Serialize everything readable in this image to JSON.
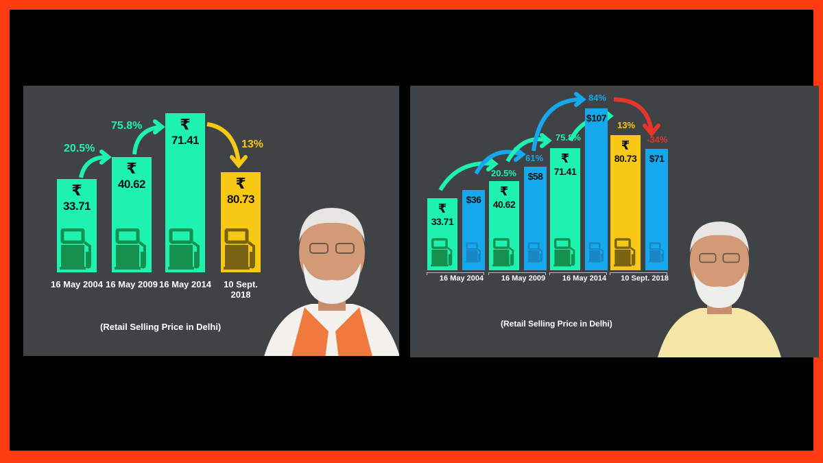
{
  "chart_data": [
    {
      "type": "bar",
      "categories": [
        "16 May 2004",
        "16 May 2009",
        "16 May 2014",
        "10 Sept. 2018"
      ],
      "series": [
        {
          "values": [
            33.71,
            40.62,
            71.41,
            80.73
          ],
          "labels": [
            "33.71",
            "40.62",
            "71.41",
            "80.73"
          ],
          "colors": [
            "#1df2b0",
            "#1df2b0",
            "#1df2b0",
            "#f7c815"
          ]
        }
      ],
      "changes": [
        "20.5%",
        "75.8%",
        "13%"
      ],
      "change_colors": [
        "#1df2b0",
        "#1df2b0",
        "#f7c815"
      ],
      "currency_symbol": "₹",
      "caption": "(Retail Selling Price in Delhi)"
    },
    {
      "type": "bar",
      "categories": [
        "16 May 2004",
        "16 May 2009",
        "16 May 2014",
        "10 Sept. 2018"
      ],
      "series": [
        {
          "values": [
            33.71,
            40.62,
            71.41,
            80.73
          ],
          "labels": [
            "33.71",
            "40.62",
            "71.41",
            "80.73"
          ],
          "colors": [
            "#1df2b0",
            "#1df2b0",
            "#1df2b0",
            "#f7c815"
          ]
        },
        {
          "values": [
            36,
            58,
            107,
            71
          ],
          "labels": [
            "$36",
            "$58",
            "$107",
            "$71"
          ],
          "color": "#15a8ec"
        }
      ],
      "changes_rupee": [
        "20.5%",
        "75.8%",
        "13%"
      ],
      "changes_dollar": [
        "61%",
        "84%",
        "-34%"
      ],
      "change_colors": {
        "rupee": "#1df2b0",
        "dollar": "#15a8ec",
        "rupee_last": "#f7c815",
        "dollar_last": "#e8352a"
      },
      "currency_symbol": "₹",
      "caption": "(Retail Selling Price in Delhi)"
    }
  ],
  "colors": {
    "border": "#ff3b0f",
    "panel": "#3f4346"
  }
}
